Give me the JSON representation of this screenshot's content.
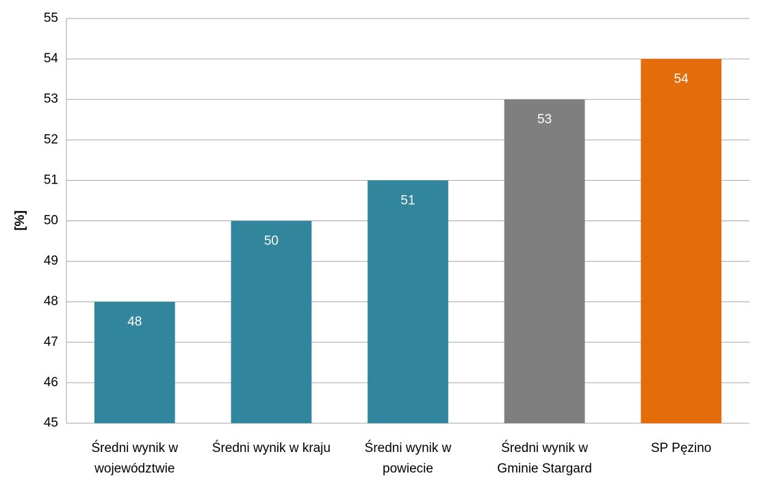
{
  "chart_data": {
    "type": "bar",
    "y_label": "[%]",
    "categories": [
      "Średni wynik w województwie",
      "Średni wynik w kraju",
      "Średni wynik w powiecie",
      "Średni wynik w Gminie Stargard",
      "SP Pęzino"
    ],
    "values": [
      48,
      50,
      51,
      53,
      54
    ],
    "colors": [
      "#31859c",
      "#31859c",
      "#31859c",
      "#7f7f7f",
      "#e46c0a"
    ],
    "ylim": [
      45,
      55
    ],
    "yticks": [
      45,
      46,
      47,
      48,
      49,
      50,
      51,
      52,
      53,
      54,
      55
    ],
    "grid": true
  }
}
